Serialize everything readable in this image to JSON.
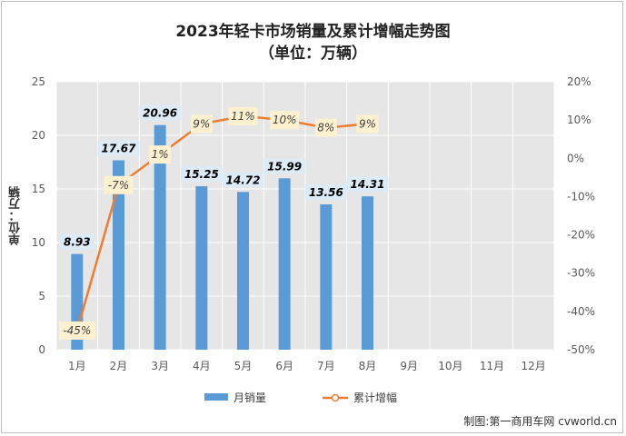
{
  "chart_data": {
    "type": "bar",
    "title": "2023年轻卡市场销量及累计增幅走势图",
    "subtitle": "（单位：万辆）",
    "ylabel": "单位：万辆",
    "categories": [
      "1月",
      "2月",
      "3月",
      "4月",
      "5月",
      "6月",
      "7月",
      "8月",
      "9月",
      "10月",
      "11月",
      "12月"
    ],
    "series": [
      {
        "name": "月销量",
        "type": "bar",
        "axis": "left",
        "values": [
          8.93,
          17.67,
          20.96,
          15.25,
          14.72,
          15.99,
          13.56,
          14.31,
          null,
          null,
          null,
          null
        ],
        "labels": [
          "8.93",
          "17.67",
          "20.96",
          "15.25",
          "14.72",
          "15.99",
          "13.56",
          "14.31",
          "",
          "",
          "",
          ""
        ],
        "color": "#5b9bd5"
      },
      {
        "name": "累计增幅",
        "type": "line",
        "axis": "right",
        "values": [
          -45,
          -7,
          1,
          9,
          11,
          10,
          8,
          9,
          null,
          null,
          null,
          null
        ],
        "labels": [
          "-45%",
          "-7%",
          "1%",
          "9%",
          "11%",
          "10%",
          "8%",
          "9%",
          "",
          "",
          "",
          ""
        ],
        "color": "#ed7d31"
      }
    ],
    "yaxis_left": {
      "min": 0,
      "max": 25,
      "ticks": [
        0,
        5,
        10,
        15,
        20,
        25
      ],
      "tick_labels": [
        "0",
        "5",
        "10",
        "15",
        "20",
        "25"
      ]
    },
    "yaxis_right": {
      "min": -50,
      "max": 20,
      "ticks": [
        -50,
        -40,
        -30,
        -20,
        -10,
        0,
        10,
        20
      ],
      "tick_labels": [
        "-50%",
        "-40%",
        "-30%",
        "-20%",
        "-10%",
        "0%",
        "10%",
        "20%"
      ]
    },
    "grid": true,
    "legend": "bottom",
    "footer": "制图:第一商用车网 cvworld.cn",
    "colors": {
      "plot_bg": "#e7e6e6",
      "grid": "#ffffff",
      "line_label_bg": "#fdf1d0",
      "bar_label_bg": "#ddebf7"
    }
  }
}
